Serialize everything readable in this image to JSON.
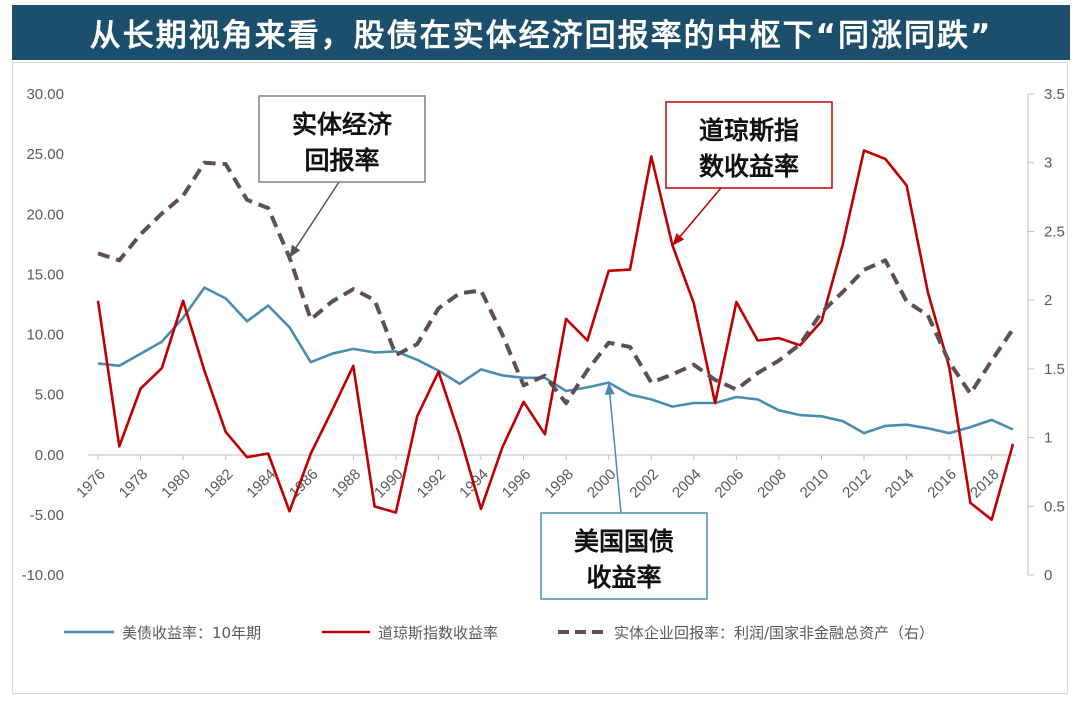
{
  "header": {
    "title": "从长期视角来看，股债在实体经济回报率的中枢下“同涨同跌”"
  },
  "chart_data": {
    "type": "line",
    "x": [
      1976,
      1977,
      1978,
      1979,
      1980,
      1981,
      1982,
      1983,
      1984,
      1985,
      1986,
      1987,
      1988,
      1989,
      1990,
      1991,
      1992,
      1993,
      1994,
      1995,
      1996,
      1997,
      1998,
      1999,
      2000,
      2001,
      2002,
      2003,
      2004,
      2005,
      2006,
      2007,
      2008,
      2009,
      2010,
      2011,
      2012,
      2013,
      2014,
      2015,
      2016,
      2017,
      2018,
      2019
    ],
    "x_tick_labels": [
      "1976",
      "1978",
      "1980",
      "1982",
      "1984",
      "1986",
      "1988",
      "1990",
      "1992",
      "1994",
      "1996",
      "1998",
      "2000",
      "2002",
      "2004",
      "2006",
      "2008",
      "2010",
      "2012",
      "2014",
      "2016",
      "2018"
    ],
    "y_left": {
      "ylim": [
        -10,
        30
      ],
      "tick_labels": [
        "30.00",
        "25.00",
        "20.00",
        "15.00",
        "10.00",
        "5.00",
        "0.00",
        "-5.00",
        "-10.00"
      ]
    },
    "y_right": {
      "ylim": [
        0,
        3.5
      ],
      "tick_labels": [
        "3.5",
        "3",
        "2.5",
        "2",
        "1.5",
        "1",
        "0.5",
        "0"
      ]
    },
    "grid": false,
    "legend_position": "bottom",
    "series": [
      {
        "name": "美债收益率：10年期",
        "axis": "left",
        "color": "#4a8db0",
        "style": "solid",
        "values": [
          7.6,
          7.4,
          8.4,
          9.4,
          11.4,
          13.9,
          13.0,
          11.1,
          12.4,
          10.6,
          7.7,
          8.4,
          8.8,
          8.5,
          8.6,
          7.9,
          7.0,
          5.9,
          7.1,
          6.6,
          6.4,
          6.4,
          5.3,
          5.6,
          6.0,
          5.0,
          4.6,
          4.0,
          4.3,
          4.3,
          4.8,
          4.6,
          3.7,
          3.3,
          3.2,
          2.8,
          1.8,
          2.4,
          2.5,
          2.2,
          1.8,
          2.3,
          2.9,
          2.1
        ]
      },
      {
        "name": "道琼斯指数收益率",
        "axis": "left",
        "color": "#c00000",
        "style": "solid",
        "values": [
          12.8,
          0.7,
          5.5,
          7.2,
          12.8,
          7.0,
          1.9,
          -0.2,
          0.1,
          -4.7,
          0.1,
          3.7,
          7.4,
          -4.3,
          -4.8,
          3.2,
          6.9,
          1.6,
          -4.5,
          0.6,
          4.4,
          1.7,
          11.3,
          9.5,
          15.3,
          15.4,
          24.8,
          17.4,
          12.6,
          4.3,
          12.7,
          9.5,
          9.7,
          9.1,
          11.1,
          17.5,
          25.3,
          24.6,
          22.4,
          13.5,
          7.3,
          -4.0,
          -5.4,
          0.9
        ]
      },
      {
        "name": "实体企业回报率：利润/国家非金融总资产（右）",
        "axis": "right",
        "color": "#5e4f55",
        "style": "dashed",
        "values": [
          2.34,
          2.29,
          2.48,
          2.63,
          2.76,
          3.0,
          2.99,
          2.73,
          2.67,
          2.31,
          1.86,
          1.99,
          2.08,
          2.0,
          1.6,
          1.68,
          1.94,
          2.05,
          2.07,
          1.75,
          1.38,
          1.45,
          1.25,
          1.49,
          1.69,
          1.66,
          1.4,
          1.46,
          1.53,
          1.42,
          1.35,
          1.47,
          1.56,
          1.68,
          1.91,
          2.06,
          2.22,
          2.29,
          1.99,
          1.89,
          1.55,
          1.32,
          1.56,
          1.79
        ]
      }
    ],
    "callouts": [
      {
        "id": "real",
        "lines": [
          "实体经济",
          "回报率"
        ],
        "border": "#808080"
      },
      {
        "id": "dow",
        "lines": [
          "道琼斯指",
          "数收益率"
        ],
        "border": "#c00000"
      },
      {
        "id": "bond",
        "lines": [
          "美国国债",
          "收益率"
        ],
        "border": "#4a8db0"
      }
    ]
  }
}
